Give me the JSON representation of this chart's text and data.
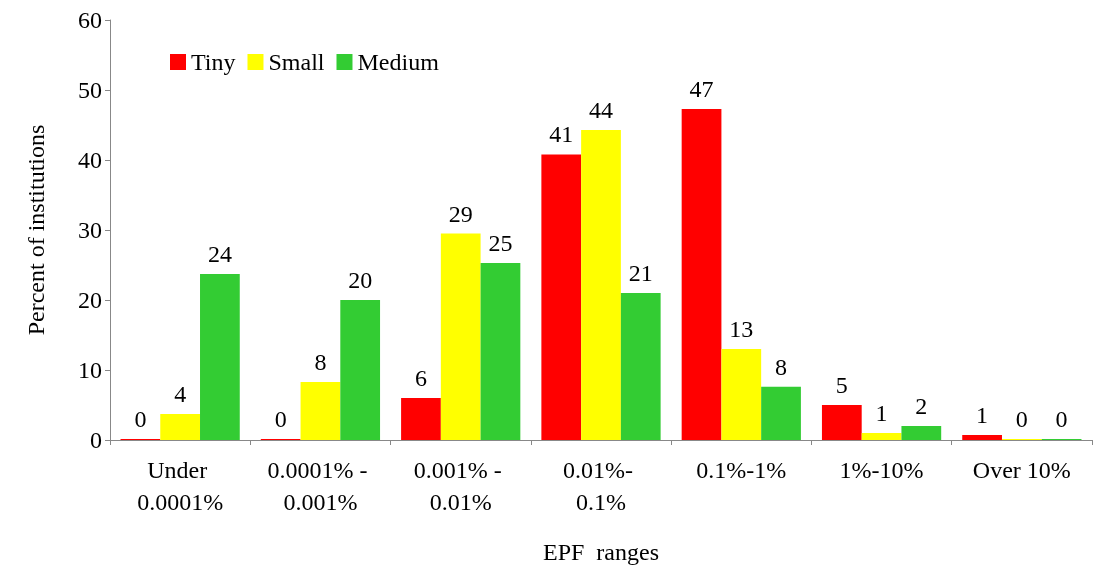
{
  "chart_data": {
    "type": "bar",
    "xlabel": "EPF  ranges",
    "ylabel": "Percent of institutions",
    "categories": [
      "Under 0.0001%",
      "0.0001% - 0.001%",
      "0.001% - 0.01%",
      "0.01%- 0.1%",
      "0.1%-1%",
      "1%-10%",
      "Over 10%"
    ],
    "series": [
      {
        "name": "Tiny",
        "color": "#ff0000",
        "values": [
          0,
          0,
          6,
          40.8,
          47.3,
          5,
          0.7
        ],
        "value_labels": [
          "0",
          "0",
          "6",
          "41",
          "47",
          "5",
          "1"
        ]
      },
      {
        "name": "Small",
        "color": "#ffff00",
        "values": [
          3.7,
          8.3,
          29.5,
          44.3,
          13,
          1,
          0
        ],
        "value_labels": [
          "4",
          "8",
          "29",
          "44",
          "13",
          "1",
          "0"
        ]
      },
      {
        "name": "Medium",
        "color": "#33cc33",
        "values": [
          23.7,
          20,
          25.3,
          21,
          7.6,
          2,
          0
        ],
        "value_labels": [
          "24",
          "20",
          "25",
          "21",
          "8",
          "2",
          "0"
        ]
      }
    ],
    "ylim": [
      0,
      60
    ],
    "yticks": [
      0,
      10,
      20,
      30,
      40,
      50,
      60
    ],
    "grid": false,
    "legend": "top left"
  }
}
